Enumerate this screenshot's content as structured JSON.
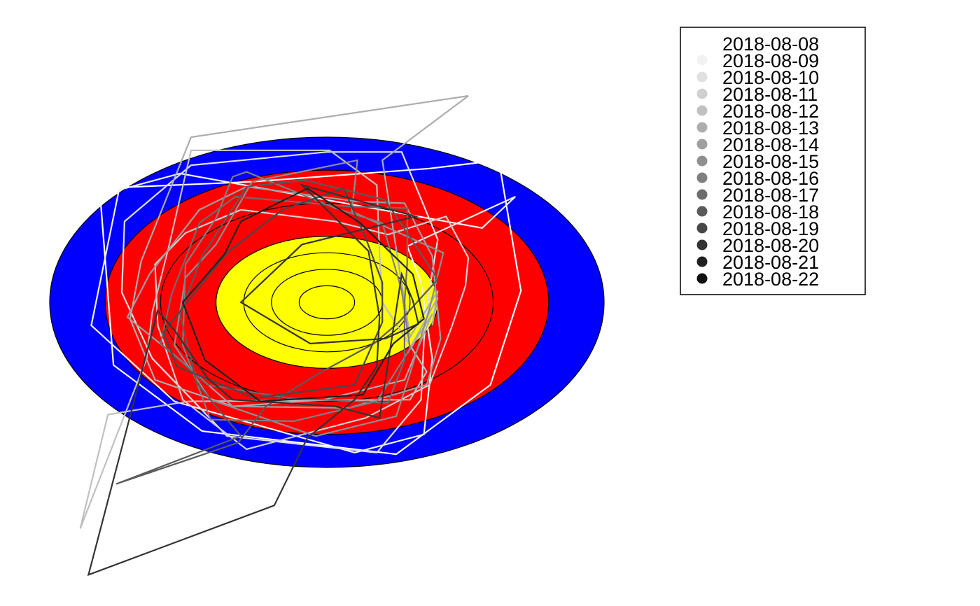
{
  "chart_data": {
    "type": "radar",
    "title": "",
    "target": {
      "rings": [
        {
          "radius": 1.0,
          "color": "#0000ff"
        },
        {
          "radius": 0.8,
          "color": "#ff0000"
        },
        {
          "radius": 0.6,
          "color": "#ff0000"
        },
        {
          "radius": 0.4,
          "color": "#ffff00"
        },
        {
          "radius": 0.3,
          "color": "#ffff00"
        },
        {
          "radius": 0.2,
          "color": "#ffff00"
        },
        {
          "radius": 0.1,
          "color": "#ffff00"
        }
      ],
      "palette": {
        "outer": "#0000ff",
        "middle": "#ff0000",
        "inner": "#ffff00",
        "line": "#000000"
      }
    },
    "legend": {
      "position": "top-right",
      "marker": "circle"
    },
    "series": [
      {
        "name": "2018-08-08",
        "color": "#ffffff",
        "vertices": [
          [
            0.62,
            0.86
          ],
          [
            0.37,
            0.81
          ],
          [
            -0.27,
            0.73
          ],
          [
            -0.82,
            0.69
          ],
          [
            -0.77,
            -0.38
          ],
          [
            -0.45,
            -0.78
          ],
          [
            0.25,
            -0.92
          ],
          [
            0.59,
            -0.5
          ],
          [
            0.7,
            0.07
          ]
        ]
      },
      {
        "name": "2018-08-09",
        "color": "#f2f2f2",
        "vertices": [
          [
            0.68,
            0.64
          ],
          [
            0.56,
            0.45
          ],
          [
            -0.53,
            0.78
          ],
          [
            -0.75,
            0.68
          ],
          [
            -0.85,
            -0.14
          ],
          [
            -0.55,
            -0.6
          ],
          [
            0.1,
            -0.91
          ],
          [
            0.35,
            -0.8
          ],
          [
            0.38,
            -0.34
          ],
          [
            0.34,
            0.12
          ],
          [
            0.29,
            0.34
          ]
        ]
      },
      {
        "name": "2018-08-10",
        "color": "#e0e0e0",
        "vertices": [
          [
            0.27,
            0.91
          ],
          [
            0.0,
            0.91
          ],
          [
            -0.49,
            0.83
          ],
          [
            -0.73,
            0.49
          ],
          [
            -0.74,
            0.06
          ],
          [
            -0.63,
            -0.34
          ],
          [
            -0.36,
            -0.81
          ],
          [
            0.18,
            -0.91
          ],
          [
            0.34,
            -0.59
          ],
          [
            0.35,
            -0.23
          ],
          [
            0.37,
            0.08
          ],
          [
            0.4,
            0.38
          ]
        ]
      },
      {
        "name": "2018-08-11",
        "color": "#d0d0d0",
        "vertices": [
          [
            0.43,
            0.52
          ],
          [
            0.51,
            0.27
          ],
          [
            0.5,
            0.1
          ],
          [
            0.45,
            -0.15
          ],
          [
            0.37,
            -0.5
          ],
          [
            0.14,
            -0.7
          ],
          [
            -0.29,
            -0.89
          ],
          [
            -0.52,
            -0.59
          ],
          [
            -0.61,
            -0.14
          ],
          [
            -0.62,
            0.23
          ],
          [
            -0.51,
            0.42
          ],
          [
            -0.31,
            0.56
          ],
          [
            0.03,
            0.49
          ],
          [
            0.22,
            0.41
          ]
        ]
      },
      {
        "name": "2018-08-12",
        "color": "#c0c0c0",
        "vertices": [
          [
            -0.49,
            0.92
          ],
          [
            0.01,
            0.92
          ],
          [
            0.18,
            0.71
          ],
          [
            0.19,
            0.3
          ],
          [
            0.2,
            0.0
          ],
          [
            0.36,
            -0.42
          ],
          [
            0.3,
            -0.59
          ],
          [
            -0.5,
            -0.6
          ],
          [
            -0.79,
            -0.68
          ],
          [
            -0.89,
            -1.37
          ],
          [
            -0.65,
            -0.34
          ],
          [
            -0.63,
            -0.06
          ],
          [
            -0.57,
            0.34
          ]
        ]
      },
      {
        "name": "2018-08-13",
        "color": "#adadad",
        "vertices": [
          [
            0.51,
            1.25
          ],
          [
            -0.49,
            1.0
          ],
          [
            -0.67,
            0.25
          ],
          [
            -0.71,
            -0.1
          ],
          [
            -0.62,
            -0.47
          ],
          [
            -0.34,
            -0.63
          ],
          [
            -0.01,
            -0.59
          ],
          [
            0.28,
            -0.47
          ],
          [
            0.38,
            -0.07
          ],
          [
            0.29,
            -0.31
          ],
          [
            0.4,
            0.03
          ],
          [
            0.38,
            -0.14
          ],
          [
            0.4,
            0.07
          ],
          [
            0.3,
            -0.21
          ],
          [
            0.2,
            0.86
          ]
        ]
      },
      {
        "name": "2018-08-14",
        "color": "#9f9f9f",
        "vertices": [
          [
            0.28,
            0.6
          ],
          [
            0.11,
            0.61
          ],
          [
            -0.29,
            0.7
          ],
          [
            -0.46,
            0.56
          ],
          [
            -0.64,
            0.17
          ],
          [
            -0.72,
            -0.09
          ],
          [
            -0.55,
            -0.32
          ],
          [
            -0.34,
            -0.63
          ],
          [
            0.08,
            -0.64
          ],
          [
            0.36,
            -0.5
          ],
          [
            0.41,
            -0.22
          ],
          [
            0.38,
            0.28
          ]
        ]
      },
      {
        "name": "2018-08-15",
        "color": "#8f8f8f",
        "vertices": [
          [
            0.11,
            0.86
          ],
          [
            -0.27,
            0.73
          ],
          [
            -0.4,
            0.35
          ],
          [
            -0.51,
            0.15
          ],
          [
            -0.55,
            -0.26
          ],
          [
            -0.42,
            -0.59
          ],
          [
            -0.04,
            -0.81
          ],
          [
            0.25,
            -0.69
          ],
          [
            0.3,
            -0.43
          ],
          [
            0.37,
            -0.04
          ],
          [
            0.42,
            0.3
          ],
          [
            0.09,
            0.55
          ]
        ]
      },
      {
        "name": "2018-08-16",
        "color": "#7f7f7f",
        "vertices": [
          [
            -0.34,
            0.76
          ],
          [
            -0.29,
            0.79
          ],
          [
            0.03,
            0.57
          ],
          [
            0.2,
            0.48
          ],
          [
            0.27,
            0.07
          ],
          [
            0.3,
            -0.28
          ],
          [
            0.18,
            -0.6
          ],
          [
            -0.12,
            -0.72
          ],
          [
            -0.42,
            -0.71
          ],
          [
            -0.52,
            -0.26
          ],
          [
            -0.51,
            0.23
          ],
          [
            -0.4,
            0.51
          ]
        ]
      },
      {
        "name": "2018-08-17",
        "color": "#6c6c6c",
        "vertices": [
          [
            0.29,
            0.57
          ],
          [
            0.08,
            0.58
          ],
          [
            -0.33,
            0.64
          ],
          [
            -0.46,
            0.48
          ],
          [
            -0.56,
            0.05
          ],
          [
            -0.6,
            -0.25
          ],
          [
            -0.43,
            -0.5
          ],
          [
            -0.14,
            -0.58
          ],
          [
            0.22,
            -0.61
          ],
          [
            0.28,
            -0.35
          ],
          [
            0.28,
            0.0
          ],
          [
            0.29,
            0.24
          ]
        ]
      },
      {
        "name": "2018-08-18",
        "color": "#5a5a5a",
        "vertices": [
          [
            0.21,
            0.62
          ],
          [
            -0.08,
            0.74
          ],
          [
            -0.29,
            0.7
          ],
          [
            -0.45,
            0.28
          ],
          [
            -0.53,
            -0.07
          ],
          [
            -0.47,
            -0.49
          ],
          [
            -0.31,
            -0.81
          ],
          [
            -0.76,
            -1.1
          ],
          [
            -0.32,
            -0.85
          ],
          [
            -0.22,
            -0.63
          ],
          [
            -0.04,
            -0.44
          ],
          [
            0.17,
            -0.25
          ],
          [
            0.26,
            -0.12
          ],
          [
            0.4,
            0.14
          ]
        ]
      },
      {
        "name": "2018-08-19",
        "color": "#474747",
        "vertices": [
          [
            0.06,
            0.69
          ],
          [
            -0.16,
            0.56
          ],
          [
            -0.36,
            0.3
          ],
          [
            -0.48,
            0.05
          ],
          [
            -0.59,
            -0.18
          ],
          [
            -0.54,
            -0.39
          ],
          [
            -0.26,
            -0.58
          ],
          [
            0.1,
            -0.5
          ],
          [
            0.2,
            -0.12
          ],
          [
            0.2,
            0.12
          ],
          [
            0.14,
            0.39
          ]
        ]
      },
      {
        "name": "2018-08-20",
        "color": "#333333",
        "vertices": [
          [
            0.32,
            0.52
          ],
          [
            -0.09,
            0.35
          ],
          [
            -0.31,
            0.0
          ],
          [
            -0.06,
            -0.25
          ],
          [
            0.21,
            -0.22
          ],
          [
            0.33,
            -0.13
          ],
          [
            0.31,
            0.01
          ],
          [
            0.27,
            0.17
          ],
          [
            0.19,
            -0.7
          ],
          [
            0.03,
            -0.63
          ],
          [
            -0.34,
            -0.59
          ],
          [
            -0.43,
            -0.46
          ],
          [
            -0.55,
            -0.17
          ],
          [
            -0.61,
            -0.05
          ],
          [
            -0.86,
            -1.65
          ],
          [
            -0.19,
            -1.23
          ],
          [
            -0.07,
            -0.82
          ],
          [
            0.1,
            -0.59
          ],
          [
            0.18,
            -0.39
          ],
          [
            0.19,
            -0.09
          ],
          [
            0.15,
            0.31
          ],
          [
            -0.09,
            0.71
          ]
        ]
      },
      {
        "name": "2018-08-21",
        "color": "#202020",
        "vertices": [
          [
            -0.07,
            0.69
          ],
          [
            -0.31,
            0.49
          ],
          [
            -0.37,
            0.29
          ],
          [
            -0.52,
            0.0
          ],
          [
            -0.44,
            -0.35
          ],
          [
            -0.24,
            -0.6
          ],
          [
            0.13,
            -0.56
          ],
          [
            0.24,
            -0.25
          ],
          [
            0.35,
            -0.1
          ],
          [
            0.31,
            0.17
          ],
          [
            0.12,
            0.48
          ]
        ]
      },
      {
        "name": "2018-08-22",
        "color": "#101010",
        "vertices": []
      }
    ]
  }
}
